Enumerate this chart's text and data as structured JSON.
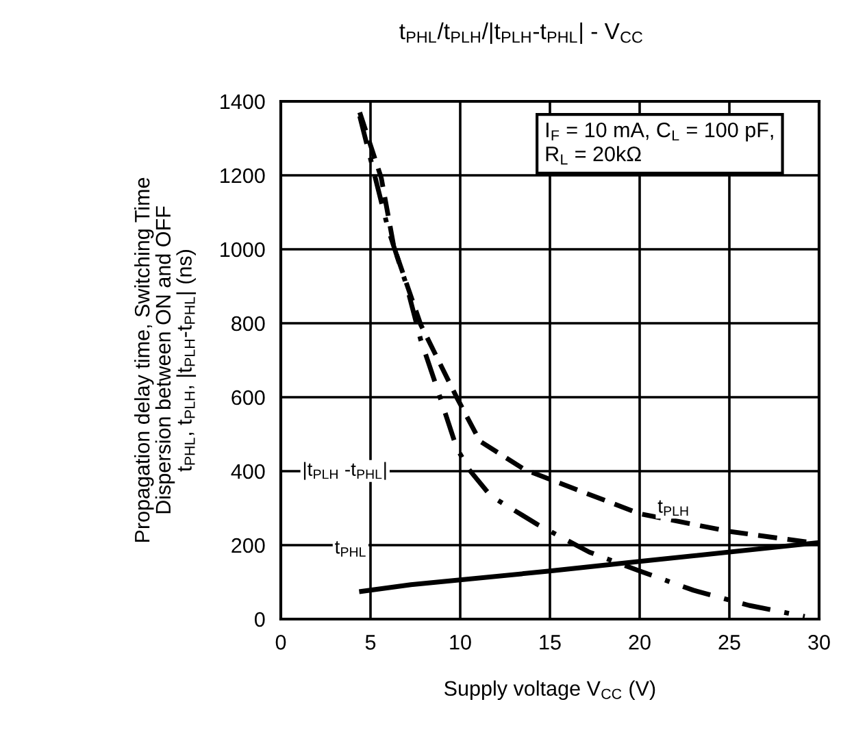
{
  "chart_data": {
    "type": "line",
    "title": "t$_{PHL}$/t$_{PLH}$/|t$_{PLH}$-t$_{PHL}$| - V$_{CC}$",
    "xlabel": "Supply voltage V$_{CC}$ (V)",
    "ylabel": "Propagation delay time, Switching Time\nDispersion between ON and OFF\nt$_{PHL}$, t$_{PLH}$, |t$_{PLH}$-t$_{PHL}$| (ns)",
    "xlim": [
      0,
      30
    ],
    "ylim": [
      0,
      1400
    ],
    "xticks": [
      0,
      5,
      10,
      15,
      20,
      25,
      30
    ],
    "yticks": [
      0,
      200,
      400,
      600,
      800,
      1000,
      1200,
      1400
    ],
    "grid": true,
    "legend": false,
    "series": [
      {
        "color": "#000000",
        "line_style": "dashed",
        "x": [
          4.4,
          5.6,
          6.3,
          7.8,
          9.8,
          11.1,
          13.6,
          20,
          25,
          30
        ],
        "values": [
          1370,
          1193,
          1007,
          796,
          600,
          481,
          404,
          285,
          237,
          204
        ]
      },
      {
        "color": "#000000",
        "line_style": "solid",
        "x": [
          4.5,
          7.25,
          15,
          20,
          30
        ],
        "values": [
          75,
          93,
          130,
          156,
          207
        ]
      },
      {
        "color": "#000000",
        "line_style": "dashdot",
        "x": [
          4.4,
          6,
          7,
          7.8,
          8.8,
          9.8,
          10.5,
          11.7,
          14.3,
          17.2,
          20,
          23,
          26.1,
          29.2
        ],
        "values": [
          1360,
          1052,
          904,
          755,
          611,
          463,
          404,
          333,
          256,
          181,
          130,
          78,
          37,
          7
        ]
      }
    ],
    "annotations": [
      "I$_{F}$ = 10 mA, C$_{L}$ = 100 pF,\nR$_{L}$ = 20kΩ",
      "|t$_{PLH}$ -t$_{PHL}$|",
      "t$_{PLH}$",
      "t$_{PHL}$"
    ]
  }
}
